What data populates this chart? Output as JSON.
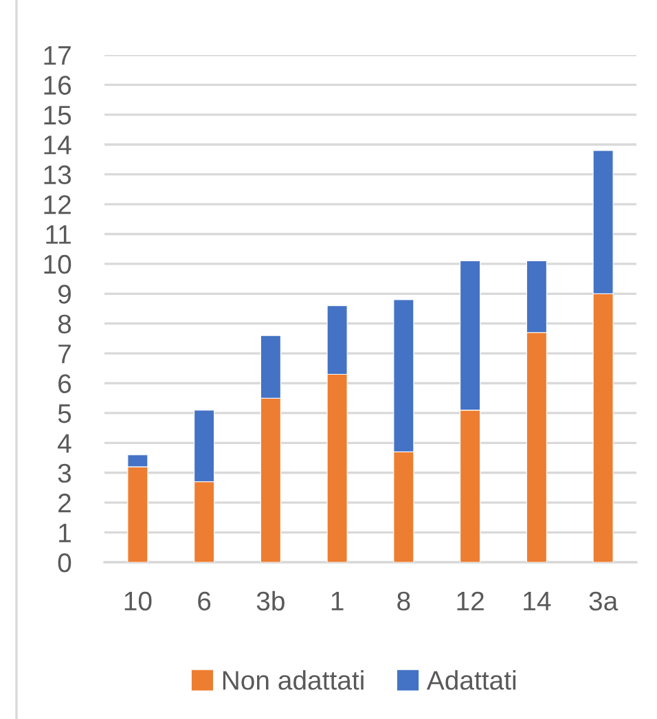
{
  "chart_data": {
    "type": "bar",
    "stacked": true,
    "categories": [
      "10",
      "6",
      "3b",
      "1",
      "8",
      "12",
      "14",
      "3a"
    ],
    "series": [
      {
        "name": "Non adattati",
        "color": "#ed7d31",
        "values": [
          3.2,
          2.7,
          5.5,
          6.3,
          3.7,
          5.1,
          7.7,
          9.0
        ]
      },
      {
        "name": "Adattati",
        "color": "#4472c4",
        "values": [
          0.4,
          2.4,
          2.1,
          2.3,
          5.1,
          5.0,
          2.4,
          4.8
        ]
      }
    ],
    "ylim": [
      0,
      17
    ],
    "yticks": [
      0,
      1,
      2,
      3,
      4,
      5,
      6,
      7,
      8,
      9,
      10,
      11,
      12,
      13,
      14,
      15,
      16,
      17
    ],
    "grid": "y",
    "legend": "bottom"
  }
}
